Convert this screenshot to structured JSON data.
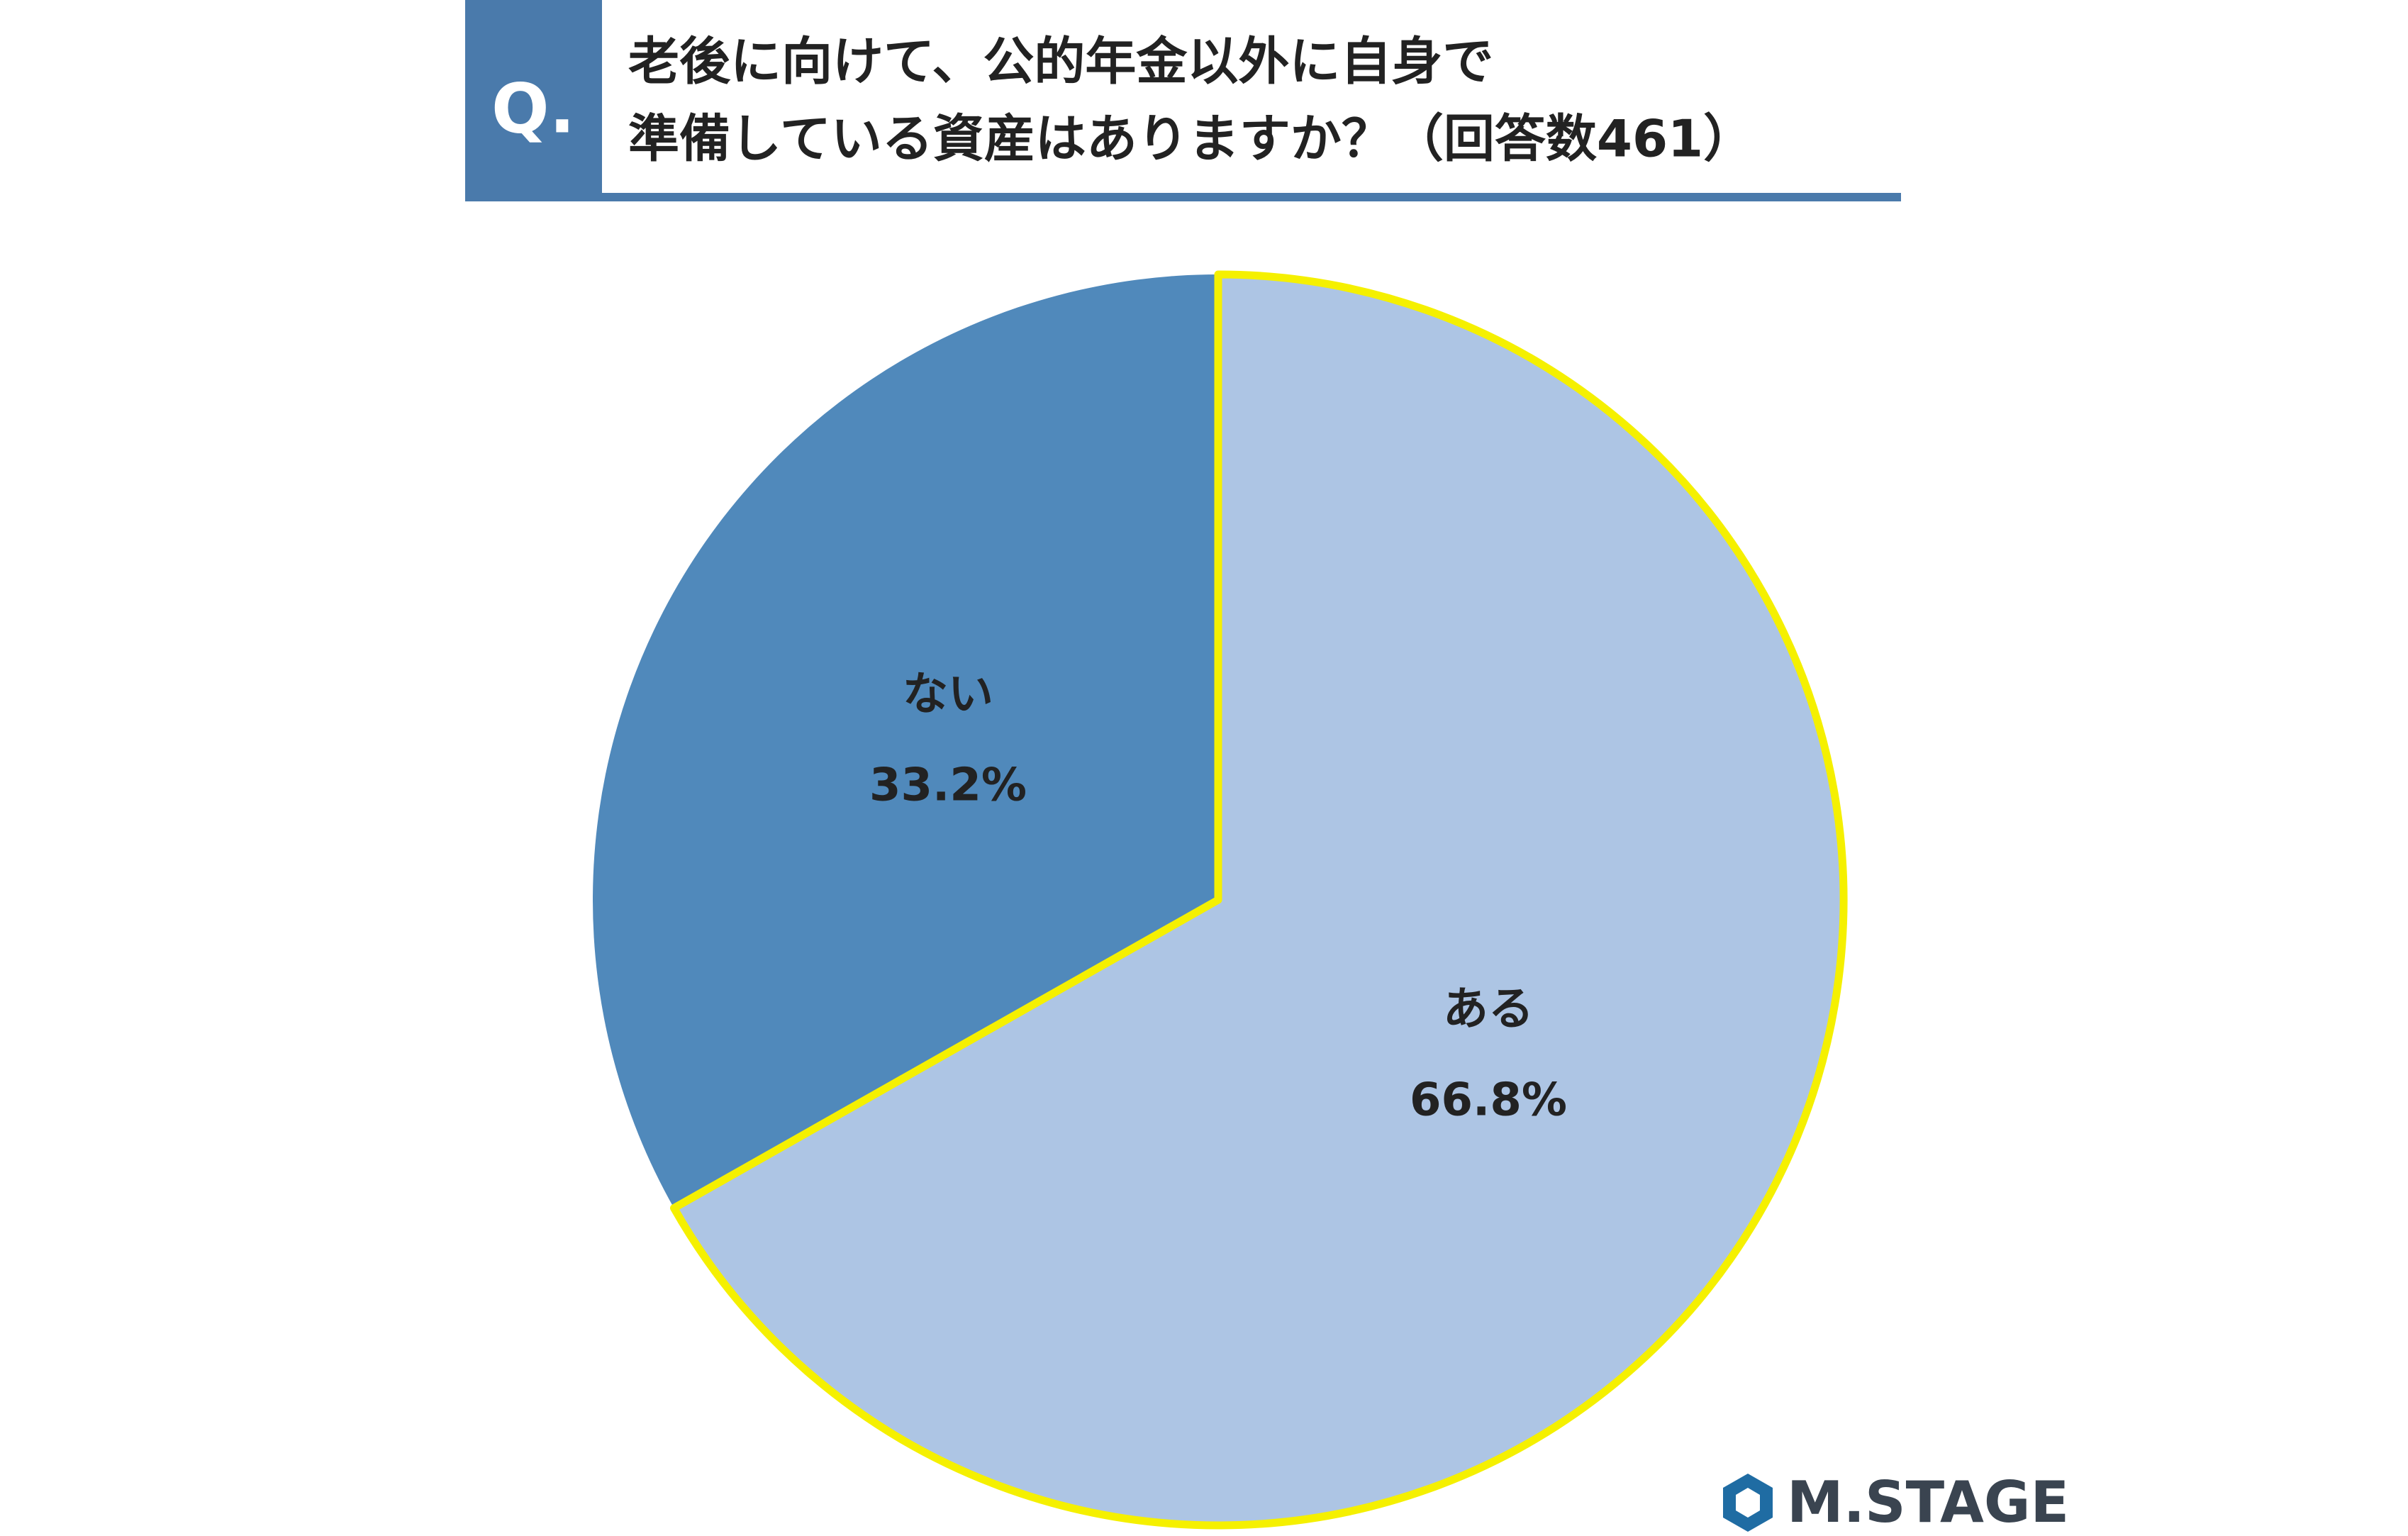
{
  "chart_data": {
    "type": "pie",
    "question_mark": "Q.",
    "title_lines": [
      "老後に向けて、公的年金以外に自身で",
      "準備している資産はありますか？（回答数461）"
    ],
    "categories": [
      "ある",
      "ない"
    ],
    "values": [
      66.8,
      33.2
    ],
    "value_labels": [
      "66.8%",
      "33.2%"
    ],
    "colors": [
      "#adc5e4",
      "#5089bb"
    ],
    "edge_color": "#f5f000",
    "logo": "M.STAGE"
  }
}
